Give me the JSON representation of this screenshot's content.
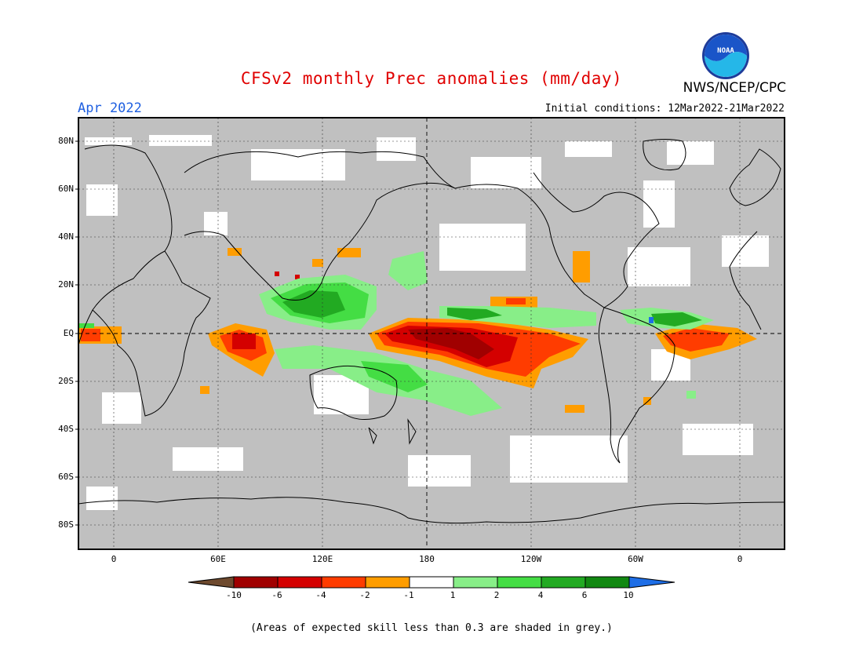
{
  "header": {
    "title": "CFSv2 monthly Prec anomalies (mm/day)",
    "agency": "NWS/NCEP/CPC",
    "logo_text": "NOAA",
    "month": "Apr 2022",
    "initial_conditions": "Initial conditions: 12Mar2022-21Mar2022"
  },
  "map": {
    "lat_labels": [
      "80N",
      "60N",
      "40N",
      "20N",
      "EQ",
      "20S",
      "40S",
      "60S",
      "80S"
    ],
    "lon_labels": [
      "0",
      "60E",
      "120E",
      "180",
      "120W",
      "60W",
      "0"
    ],
    "background_color": "#c0c0c0"
  },
  "colorbar": {
    "labels": [
      "-10",
      "-6",
      "-4",
      "-2",
      "-1",
      "1",
      "2",
      "4",
      "6",
      "10"
    ],
    "colors": [
      "#6e4a2e",
      "#a00000",
      "#d40000",
      "#ff3c00",
      "#ff9d00",
      "#ffffff",
      "#88ee88",
      "#44dd44",
      "#22aa22",
      "#118811",
      "#1e6ee6"
    ]
  },
  "footnote": "(Areas of expected skill less than 0.3 are shaded in grey.)"
}
